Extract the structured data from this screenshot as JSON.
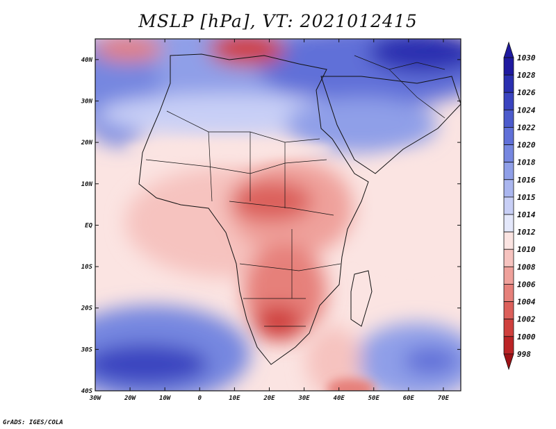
{
  "chart_data": {
    "type": "heatmap",
    "title": "MSLP [hPa], VT: 2021012415",
    "variable": "MSLP",
    "units": "hPa",
    "valid_time": "2021012415",
    "x_ticks": [
      "30W",
      "20W",
      "10W",
      "0",
      "10E",
      "20E",
      "30E",
      "40E",
      "50E",
      "60E",
      "70E"
    ],
    "y_ticks": [
      "40N",
      "30N",
      "20N",
      "10N",
      "EQ",
      "10S",
      "20S",
      "30S",
      "40S"
    ],
    "lon_range": [
      -30,
      75
    ],
    "lat_range": [
      -40,
      45
    ],
    "colorbar": {
      "levels": [
        "1030",
        "1028",
        "1026",
        "1024",
        "1022",
        "1020",
        "1018",
        "1016",
        "1015",
        "1014",
        "1012",
        "1010",
        "1008",
        "1006",
        "1004",
        "1002",
        "1000",
        "998"
      ],
      "colors": [
        "#1f1aa0",
        "#2a2fb0",
        "#3a44c0",
        "#4c5bcc",
        "#6070d8",
        "#7687e0",
        "#8f9fe8",
        "#aab6ef",
        "#c8cff6",
        "#e4e8fb",
        "#fbe4e2",
        "#f6c3bf",
        "#efa19b",
        "#e6807a",
        "#dc605b",
        "#cf403d",
        "#bb2426",
        "#9e1116"
      ]
    },
    "credit": "GrADS: IGES/COLA"
  }
}
